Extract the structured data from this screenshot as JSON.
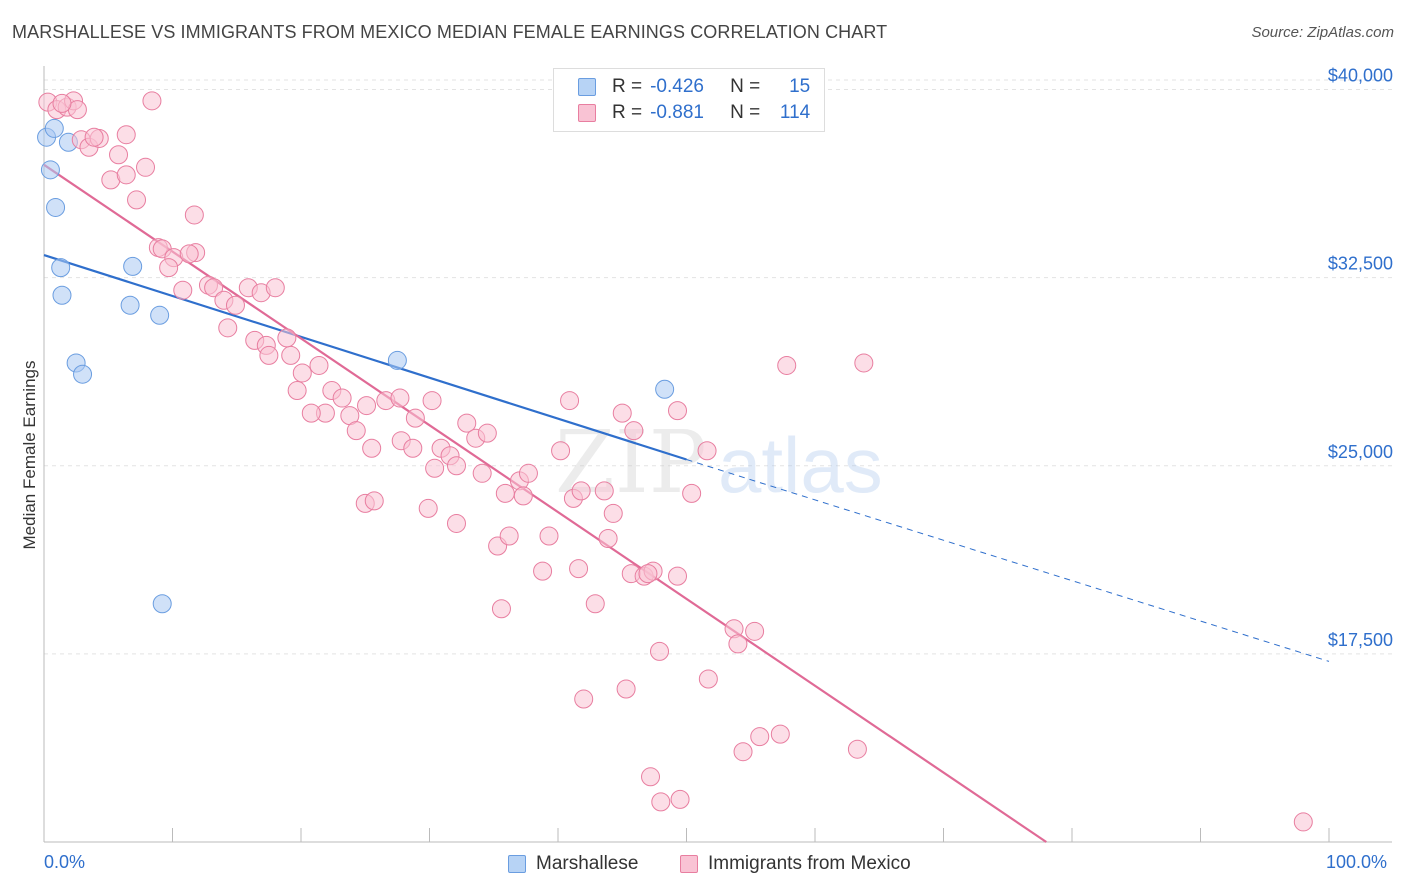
{
  "title": "MARSHALLESE VS IMMIGRANTS FROM MEXICO MEDIAN FEMALE EARNINGS CORRELATION CHART",
  "source": "Source: ZipAtlas.com",
  "watermark": {
    "zip": "ZIP",
    "atlas": "atlas"
  },
  "legend": {
    "r_label": "R =",
    "n_label": "N =",
    "rows": [
      {
        "r": "-0.426",
        "n": "15",
        "color": "#b7d3f5",
        "border": "#6a9de0"
      },
      {
        "r": "-0.881",
        "n": "114",
        "color": "#f9c3d4",
        "border": "#e87ea0"
      }
    ]
  },
  "bottom_legend": [
    "Marshallese",
    "Immigrants from Mexico"
  ],
  "x_tick_labels": {
    "left": "0.0%",
    "right": "100.0%"
  },
  "chart_data": {
    "type": "scatter",
    "title": "MARSHALLESE VS IMMIGRANTS FROM MEXICO MEDIAN FEMALE EARNINGS CORRELATION CHART",
    "xlabel": "",
    "ylabel": "Median Female Earnings",
    "xlim": [
      0,
      100
    ],
    "ylim": [
      10000,
      40700
    ],
    "y_ticks": [
      {
        "value": 40000,
        "label": "$40,000"
      },
      {
        "value": 32500,
        "label": "$32,500"
      },
      {
        "value": 25000,
        "label": "$25,000"
      },
      {
        "value": 17500,
        "label": "$17,500"
      }
    ],
    "grid": true,
    "legend_position": "top-center",
    "series": [
      {
        "name": "Marshallese",
        "color": "#a9c9f2",
        "stroke": "#6a9de0",
        "line_color": "#2f6fcc",
        "trend": {
          "x0": 0,
          "y0": 33400,
          "x1": 50,
          "y1": 25250,
          "dashed_to_x": 100,
          "dashed_to_y": 17200
        },
        "points": [
          [
            0.2,
            38100
          ],
          [
            0.8,
            38450
          ],
          [
            1.9,
            37900
          ],
          [
            0.5,
            36800
          ],
          [
            0.9,
            35300
          ],
          [
            1.3,
            32900
          ],
          [
            1.4,
            31800
          ],
          [
            6.9,
            32950
          ],
          [
            6.7,
            31400
          ],
          [
            9.0,
            31000
          ],
          [
            2.5,
            29100
          ],
          [
            3.0,
            28650
          ],
          [
            27.5,
            29200
          ],
          [
            48.3,
            28050
          ],
          [
            9.2,
            19500
          ]
        ]
      },
      {
        "name": "Immigrants from Mexico",
        "color": "#f9c3d4",
        "stroke": "#e87ea0",
        "line_color": "#e06a96",
        "trend": {
          "x0": 0,
          "y0": 37000,
          "x1": 78,
          "y1": 10000
        },
        "points": [
          [
            0.3,
            39500
          ],
          [
            1.0,
            39200
          ],
          [
            1.8,
            39300
          ],
          [
            2.3,
            39550
          ],
          [
            2.6,
            39200
          ],
          [
            1.4,
            39450
          ],
          [
            8.4,
            39550
          ],
          [
            2.9,
            38000
          ],
          [
            3.5,
            37700
          ],
          [
            4.3,
            38050
          ],
          [
            3.9,
            38100
          ],
          [
            6.4,
            38200
          ],
          [
            5.8,
            37400
          ],
          [
            7.9,
            36900
          ],
          [
            5.2,
            36400
          ],
          [
            6.4,
            36600
          ],
          [
            7.2,
            35600
          ],
          [
            11.7,
            35000
          ],
          [
            8.9,
            33700
          ],
          [
            9.2,
            33650
          ],
          [
            11.8,
            33500
          ],
          [
            10.1,
            33300
          ],
          [
            11.3,
            33450
          ],
          [
            9.7,
            32900
          ],
          [
            10.8,
            32000
          ],
          [
            12.8,
            32200
          ],
          [
            13.2,
            32100
          ],
          [
            14.0,
            31600
          ],
          [
            15.9,
            32100
          ],
          [
            16.9,
            31900
          ],
          [
            18.0,
            32100
          ],
          [
            14.9,
            31400
          ],
          [
            14.3,
            30500
          ],
          [
            16.4,
            30000
          ],
          [
            17.3,
            29800
          ],
          [
            17.5,
            29400
          ],
          [
            19.2,
            29400
          ],
          [
            18.9,
            30100
          ],
          [
            20.1,
            28700
          ],
          [
            21.4,
            29000
          ],
          [
            19.7,
            28000
          ],
          [
            22.4,
            28000
          ],
          [
            21.9,
            27100
          ],
          [
            23.2,
            27700
          ],
          [
            25.1,
            27400
          ],
          [
            26.6,
            27600
          ],
          [
            27.7,
            27700
          ],
          [
            20.8,
            27100
          ],
          [
            23.8,
            27000
          ],
          [
            24.3,
            26400
          ],
          [
            28.9,
            26900
          ],
          [
            30.2,
            27600
          ],
          [
            27.8,
            26000
          ],
          [
            25.5,
            25700
          ],
          [
            28.7,
            25700
          ],
          [
            30.9,
            25700
          ],
          [
            32.9,
            26700
          ],
          [
            33.6,
            26100
          ],
          [
            34.5,
            26300
          ],
          [
            31.6,
            25400
          ],
          [
            32.1,
            25000
          ],
          [
            30.4,
            24900
          ],
          [
            34.1,
            24700
          ],
          [
            37.0,
            24400
          ],
          [
            37.7,
            24700
          ],
          [
            35.9,
            23900
          ],
          [
            37.3,
            23800
          ],
          [
            40.2,
            25600
          ],
          [
            40.9,
            27600
          ],
          [
            41.2,
            23700
          ],
          [
            41.8,
            24000
          ],
          [
            43.6,
            24000
          ],
          [
            45.0,
            27100
          ],
          [
            45.9,
            26400
          ],
          [
            49.3,
            27200
          ],
          [
            25.0,
            23500
          ],
          [
            25.7,
            23600
          ],
          [
            29.9,
            23300
          ],
          [
            32.1,
            22700
          ],
          [
            35.3,
            21800
          ],
          [
            36.2,
            22200
          ],
          [
            39.3,
            22200
          ],
          [
            44.3,
            23100
          ],
          [
            43.9,
            22100
          ],
          [
            50.4,
            23900
          ],
          [
            51.6,
            25600
          ],
          [
            38.8,
            20800
          ],
          [
            41.6,
            20900
          ],
          [
            45.7,
            20700
          ],
          [
            46.7,
            20600
          ],
          [
            47.4,
            20800
          ],
          [
            47.0,
            20700
          ],
          [
            49.3,
            20600
          ],
          [
            35.6,
            19300
          ],
          [
            42.9,
            19500
          ],
          [
            53.7,
            18500
          ],
          [
            55.3,
            18400
          ],
          [
            54.0,
            17900
          ],
          [
            47.9,
            17600
          ],
          [
            51.7,
            16500
          ],
          [
            45.3,
            16100
          ],
          [
            42.0,
            15700
          ],
          [
            55.7,
            14200
          ],
          [
            54.4,
            13600
          ],
          [
            57.3,
            14300
          ],
          [
            63.3,
            13700
          ],
          [
            47.2,
            12600
          ],
          [
            48.0,
            11600
          ],
          [
            49.5,
            11700
          ],
          [
            57.8,
            29000
          ],
          [
            63.8,
            29100
          ],
          [
            98.0,
            10800
          ]
        ]
      }
    ]
  }
}
